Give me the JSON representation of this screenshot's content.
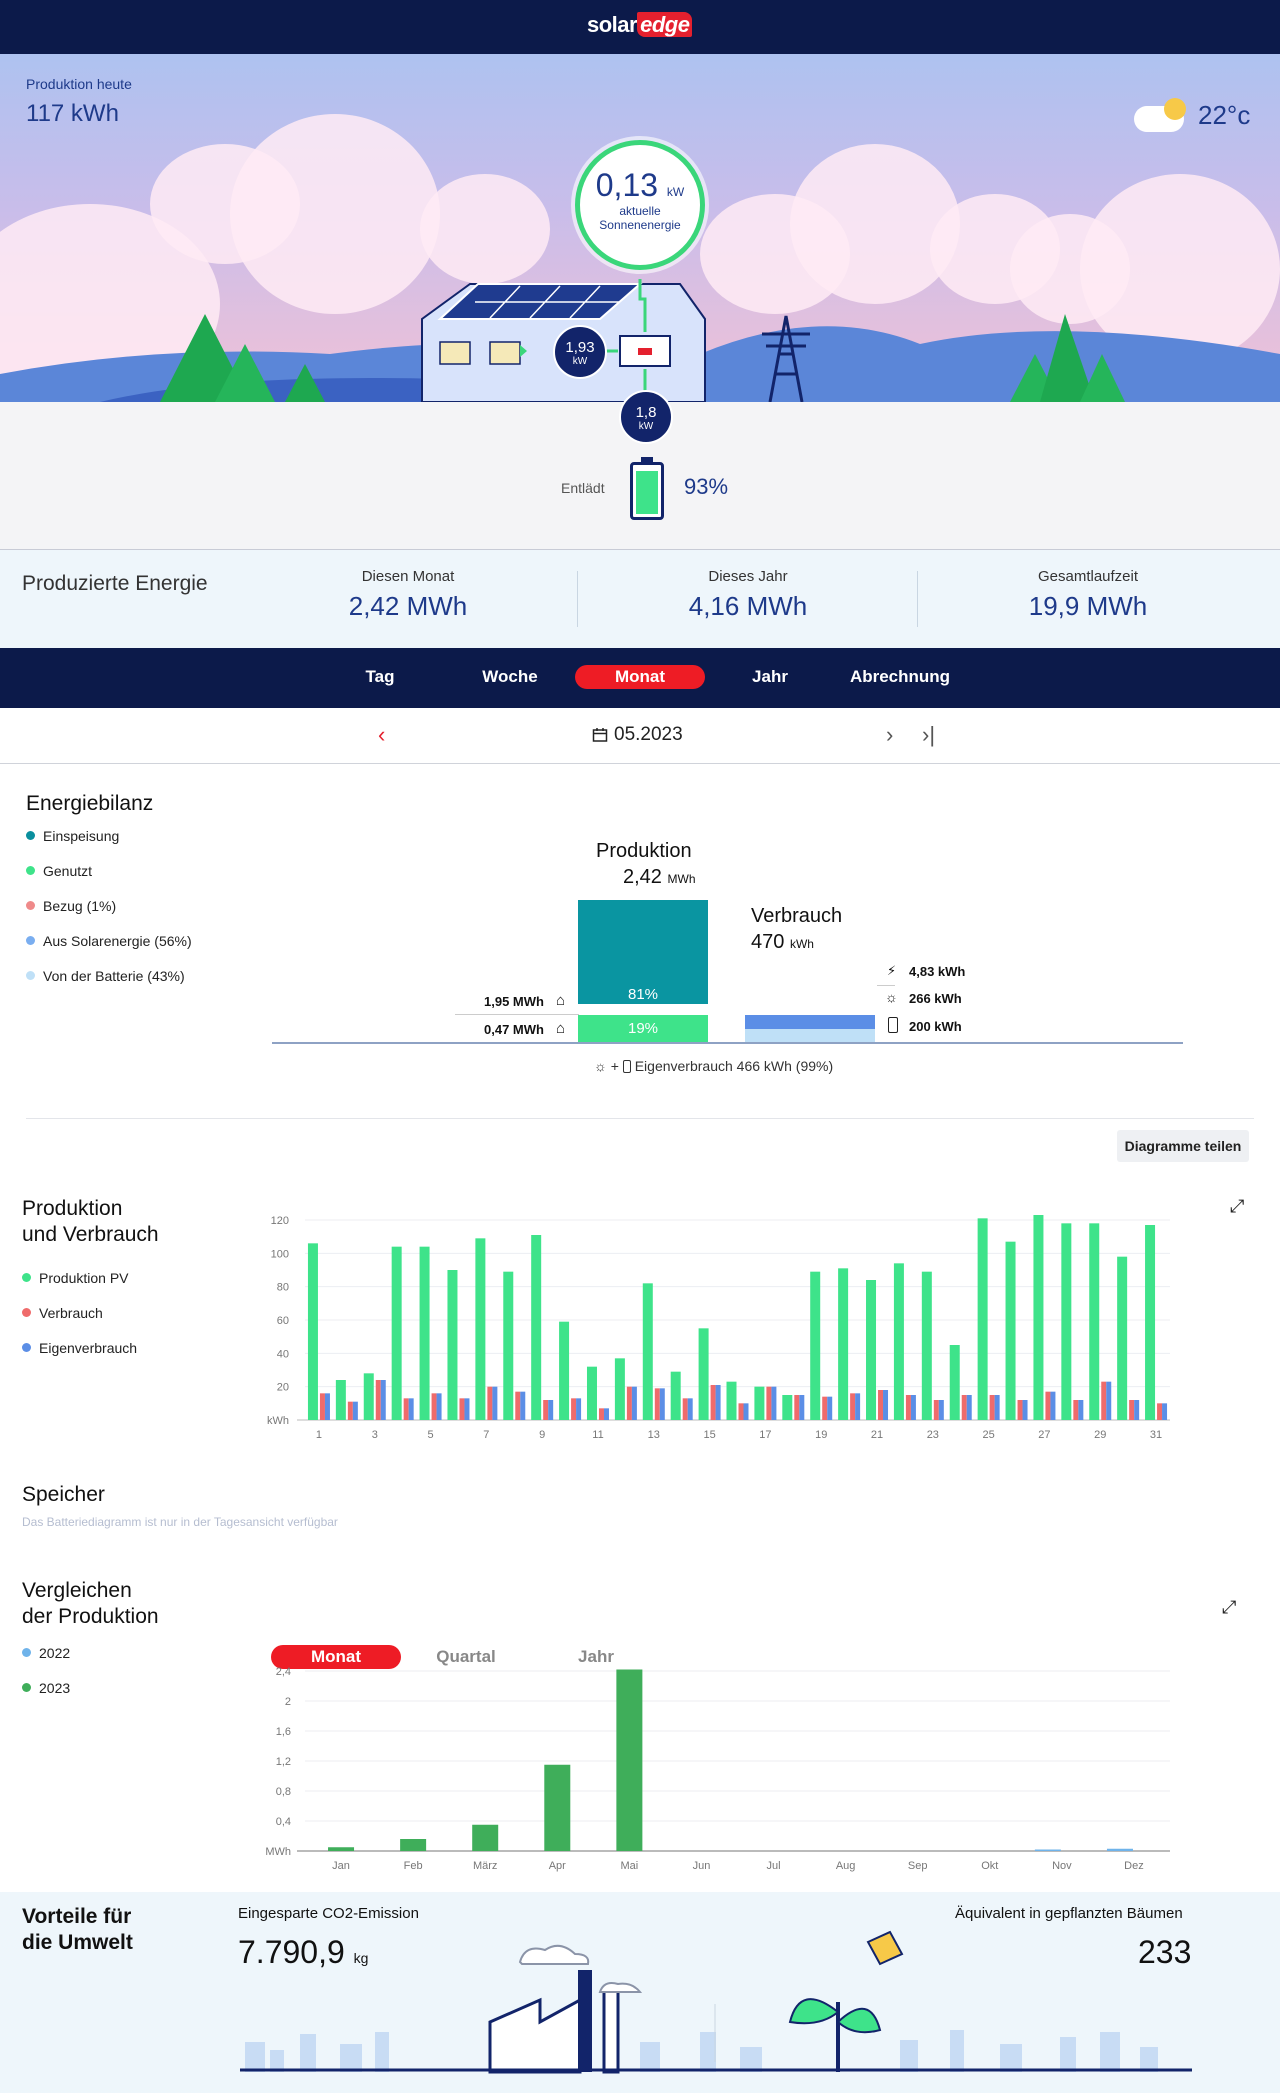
{
  "brand": {
    "solar": "solar",
    "edge": "edge"
  },
  "hero": {
    "production_label": "Produktion heute",
    "production_value": "117 kWh",
    "temperature": "22°c",
    "solar_value": "0,13",
    "solar_unit": "kW",
    "solar_label_1": "aktuelle",
    "solar_label_2": "Sonnenenergie",
    "home_value": "1,93",
    "home_unit": "kW",
    "battery_flow_value": "1,8",
    "battery_flow_unit": "kW",
    "battery_state": "Entlädt",
    "battery_pct": "93%",
    "battery_level": 0.93
  },
  "produced": {
    "title": "Produzierte Energie",
    "cols": [
      {
        "label": "Diesen Monat",
        "value": "2,42 MWh"
      },
      {
        "label": "Dieses Jahr",
        "value": "4,16 MWh"
      },
      {
        "label": "Gesamtlaufzeit",
        "value": "19,9 MWh"
      }
    ]
  },
  "tabs": [
    "Tag",
    "Woche",
    "Monat",
    "Jahr",
    "Abrechnung"
  ],
  "active_tab": "Monat",
  "date": "05.2023",
  "balance": {
    "title": "Energiebilanz",
    "legend": [
      {
        "label": "Einspeisung",
        "color": "#0a8f9e"
      },
      {
        "label": "Genutzt",
        "color": "#3ee38a"
      },
      {
        "label": "Bezug (1%)",
        "color": "#ef8a8a"
      },
      {
        "label": "Aus Solarenergie (56%)",
        "color": "#7aaef0"
      },
      {
        "label": "Von der Batterie (43%)",
        "color": "#bfe0f7"
      }
    ],
    "production_title": "Produktion",
    "production_value": "2,42",
    "production_unit": "MWh",
    "consumption_title": "Verbrauch",
    "consumption_value": "470",
    "consumption_unit": "kWh",
    "feed_in": "1,95 MWh",
    "self_used": "0,47 MWh",
    "pct_feed": "81%",
    "pct_used": "19%",
    "grid": "4,83 kWh",
    "solar": "266 kWh",
    "battery": "200 kWh",
    "self_consumption": "Eigenverbrauch 466 kWh (99%)",
    "plus": "+"
  },
  "share_button": "Diagramme teilen",
  "prodcons": {
    "title_1": "Produktion",
    "title_2": "und Verbrauch",
    "legend": [
      {
        "label": "Produktion PV",
        "color": "#3ee38a"
      },
      {
        "label": "Verbrauch",
        "color": "#ef6b6b"
      },
      {
        "label": "Eigenverbrauch",
        "color": "#5b8ee6"
      }
    ]
  },
  "storage": {
    "title": "Speicher",
    "note": "Das Batteriediagramm ist nur in der Tagesansicht verfügbar"
  },
  "compare": {
    "title_1": "Vergleichen",
    "title_2": "der Produktion",
    "segments": [
      "Monat",
      "Quartal",
      "Jahr"
    ],
    "active_segment": "Monat",
    "legend": [
      {
        "label": "2022",
        "color": "#6fb3ea"
      },
      {
        "label": "2023",
        "color": "#3fae5a"
      }
    ]
  },
  "environment": {
    "title_1": "Vorteile für",
    "title_2": "die Umwelt",
    "co2_label": "Eingesparte CO2-Emission",
    "co2_value": "7.790,9",
    "co2_unit": "kg",
    "trees_label": "Äquivalent in gepflanzten Bäumen",
    "trees_value": "233"
  },
  "chart_data": [
    {
      "type": "bar",
      "title": "Produktion und Verbrauch",
      "ylabel": "kWh",
      "ylim": [
        0,
        120
      ],
      "yticks": [
        20,
        40,
        60,
        80,
        100,
        120
      ],
      "x": [
        1,
        2,
        3,
        4,
        5,
        6,
        7,
        8,
        9,
        10,
        11,
        12,
        13,
        14,
        15,
        16,
        17,
        18,
        19,
        20,
        21,
        22,
        23,
        24,
        25,
        26,
        27,
        28,
        29,
        30,
        31
      ],
      "xtick_labels": [
        "1",
        "3",
        "5",
        "7",
        "9",
        "11",
        "13",
        "15",
        "17",
        "19",
        "21",
        "23",
        "25",
        "27",
        "29",
        "31"
      ],
      "series": [
        {
          "name": "Produktion PV",
          "color": "#3ee38a",
          "values": [
            106,
            24,
            28,
            104,
            104,
            90,
            109,
            89,
            111,
            59,
            32,
            37,
            82,
            29,
            55,
            23,
            20,
            15,
            89,
            91,
            84,
            94,
            89,
            45,
            121,
            107,
            123,
            118,
            118,
            98,
            117
          ]
        },
        {
          "name": "Verbrauch",
          "color": "#ef6b6b",
          "values": [
            16,
            11,
            24,
            13,
            16,
            13,
            20,
            17,
            12,
            13,
            7,
            20,
            19,
            13,
            21,
            10,
            20,
            15,
            14,
            16,
            18,
            15,
            12,
            15,
            15,
            12,
            17,
            12,
            23,
            12,
            10
          ]
        },
        {
          "name": "Eigenverbrauch",
          "color": "#5b8ee6",
          "values": [
            16,
            11,
            24,
            13,
            16,
            13,
            20,
            17,
            12,
            13,
            7,
            20,
            19,
            13,
            21,
            10,
            20,
            15,
            14,
            16,
            18,
            15,
            12,
            15,
            15,
            12,
            17,
            12,
            23,
            12,
            10
          ]
        }
      ]
    },
    {
      "type": "bar",
      "title": "Vergleichen der Produktion",
      "ylabel": "MWh",
      "ylim": [
        0,
        2.4
      ],
      "ytick_labels": [
        "0,4",
        "0,8",
        "1,2",
        "1,6",
        "2",
        "2,4"
      ],
      "yticks": [
        0.4,
        0.8,
        1.2,
        1.6,
        2.0,
        2.4
      ],
      "categories": [
        "Jan",
        "Feb",
        "März",
        "Apr",
        "Mai",
        "Jun",
        "Jul",
        "Aug",
        "Sep",
        "Okt",
        "Nov",
        "Dez"
      ],
      "series": [
        {
          "name": "2022",
          "color": "#6fb3ea",
          "values": [
            0,
            0,
            0,
            0,
            0,
            0,
            0,
            0,
            0,
            0,
            0.02,
            0.03
          ]
        },
        {
          "name": "2023",
          "color": "#3fae5a",
          "values": [
            0.05,
            0.16,
            0.35,
            1.15,
            2.42,
            0,
            0,
            0,
            0,
            0,
            0,
            0
          ]
        }
      ]
    }
  ]
}
